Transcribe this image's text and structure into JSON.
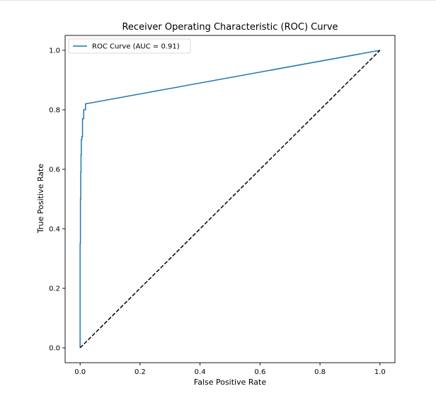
{
  "chart_data": {
    "type": "line",
    "title": "Receiver Operating Characteristic (ROC) Curve",
    "xlabel": "False Positive Rate",
    "ylabel": "True Positive Rate",
    "xlim": [
      -0.05,
      1.05
    ],
    "ylim": [
      -0.05,
      1.05
    ],
    "x_ticks": [
      "0.0",
      "0.2",
      "0.4",
      "0.6",
      "0.8",
      "1.0"
    ],
    "y_ticks": [
      "0.0",
      "0.2",
      "0.4",
      "0.6",
      "0.8",
      "1.0"
    ],
    "grid": false,
    "legend_position": "top-left",
    "series": [
      {
        "name": "ROC Curve (AUC = 0.91)",
        "color": "#1f77b4",
        "style": "solid",
        "x": [
          0.0,
          0.0,
          0.001,
          0.001,
          0.002,
          0.002,
          0.003,
          0.003,
          0.004,
          0.004,
          0.006,
          0.006,
          0.008,
          0.008,
          0.012,
          0.012,
          0.018,
          0.018,
          1.0
        ],
        "y": [
          0.0,
          0.35,
          0.35,
          0.5,
          0.5,
          0.59,
          0.59,
          0.65,
          0.65,
          0.7,
          0.7,
          0.71,
          0.71,
          0.77,
          0.77,
          0.8,
          0.8,
          0.82,
          1.0
        ]
      },
      {
        "color": "#000000",
        "style": "dashed",
        "x": [
          0.0,
          1.0
        ],
        "y": [
          0.0,
          1.0
        ]
      }
    ]
  }
}
